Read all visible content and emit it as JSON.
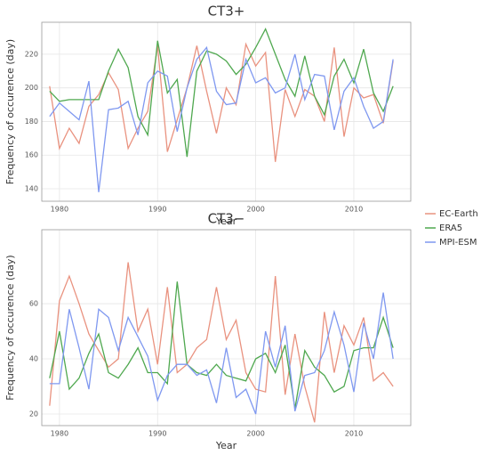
{
  "chart_data": [
    {
      "type": "line",
      "title": "CT3+",
      "x_label": "Year",
      "y_label": "Frequency of occurence (day)",
      "x": [
        1979,
        1980,
        1981,
        1982,
        1983,
        1984,
        1985,
        1986,
        1987,
        1988,
        1989,
        1990,
        1991,
        1992,
        1993,
        1994,
        1995,
        1996,
        1997,
        1998,
        1999,
        2000,
        2001,
        2002,
        2003,
        2004,
        2005,
        2006,
        2007,
        2008,
        2009,
        2010,
        2011,
        2012,
        2013,
        2014
      ],
      "xlim": [
        1978.2,
        2015.8
      ],
      "xticks": [
        1980,
        1990,
        2000,
        2010
      ],
      "ylim": [
        132.6,
        239
      ],
      "yticks": [
        140,
        160,
        180,
        200,
        220
      ],
      "grid": true,
      "series": [
        {
          "name": "EC-Earth",
          "color": "#e9927f",
          "values": [
            201,
            164,
            176,
            167,
            189,
            196,
            209,
            199,
            164,
            176,
            186,
            225,
            162,
            181,
            200,
            225,
            198,
            173,
            200,
            190,
            226,
            213,
            221,
            156,
            199,
            183,
            199,
            195,
            180,
            224,
            171,
            200,
            194,
            196,
            179,
            216
          ]
        },
        {
          "name": "ERA5",
          "color": "#4fa84f",
          "values": [
            198,
            192,
            193,
            193,
            193,
            193,
            210,
            223,
            212,
            183,
            172,
            228,
            197,
            205,
            159,
            210,
            222,
            220,
            216,
            208,
            214,
            224,
            235,
            220,
            205,
            195,
            219,
            195,
            184,
            207,
            217,
            203,
            223,
            197,
            186,
            201
          ]
        },
        {
          "name": "MPI-ESM",
          "color": "#7f98f0",
          "values": [
            183,
            191,
            186,
            181,
            204,
            138,
            187,
            188,
            192,
            172,
            203,
            210,
            207,
            174,
            200,
            217,
            224,
            198,
            190,
            191,
            217,
            203,
            206,
            197,
            200,
            220,
            193,
            208,
            207,
            175,
            198,
            206,
            189,
            176,
            180,
            217
          ]
        }
      ]
    },
    {
      "type": "line",
      "title": "CT3−",
      "x_label": "Year",
      "y_label": "Frequency of occurence (day)",
      "x": [
        1979,
        1980,
        1981,
        1982,
        1983,
        1984,
        1985,
        1986,
        1987,
        1988,
        1989,
        1990,
        1991,
        1992,
        1993,
        1994,
        1995,
        1996,
        1997,
        1998,
        1999,
        2000,
        2001,
        2002,
        2003,
        2004,
        2005,
        2006,
        2007,
        2008,
        2009,
        2010,
        2011,
        2012,
        2013,
        2014
      ],
      "xlim": [
        1978.2,
        2015.8
      ],
      "xticks": [
        1980,
        1990,
        2000,
        2010
      ],
      "ylim": [
        15.8,
        86.8
      ],
      "yticks": [
        20,
        40,
        60
      ],
      "grid": true,
      "series": [
        {
          "name": "EC-Earth",
          "color": "#e9927f",
          "values": [
            23,
            61,
            70,
            60,
            49,
            43,
            37,
            40,
            75,
            50,
            58,
            38,
            66,
            35,
            38,
            44,
            47,
            66,
            47,
            54,
            35,
            29,
            28,
            70,
            27,
            49,
            30,
            17,
            57,
            35,
            52,
            45,
            55,
            32,
            35,
            30
          ]
        },
        {
          "name": "ERA5",
          "color": "#4fa84f",
          "values": [
            33,
            50,
            29,
            33,
            42,
            49,
            35,
            33,
            38,
            44,
            35,
            35,
            31,
            68,
            38,
            35,
            34,
            38,
            34,
            33,
            32,
            40,
            42,
            35,
            45,
            22,
            43,
            37,
            34,
            28,
            30,
            43,
            44,
            44,
            55,
            44
          ]
        },
        {
          "name": "MPI-ESM",
          "color": "#7f98f0",
          "values": [
            31,
            31,
            58,
            44,
            29,
            58,
            55,
            43,
            55,
            48,
            41,
            25,
            34,
            38,
            38,
            34,
            36,
            24,
            44,
            26,
            29,
            20,
            50,
            37,
            52,
            21,
            34,
            35,
            43,
            57,
            45,
            28,
            53,
            40,
            64,
            40
          ]
        }
      ]
    }
  ]
}
